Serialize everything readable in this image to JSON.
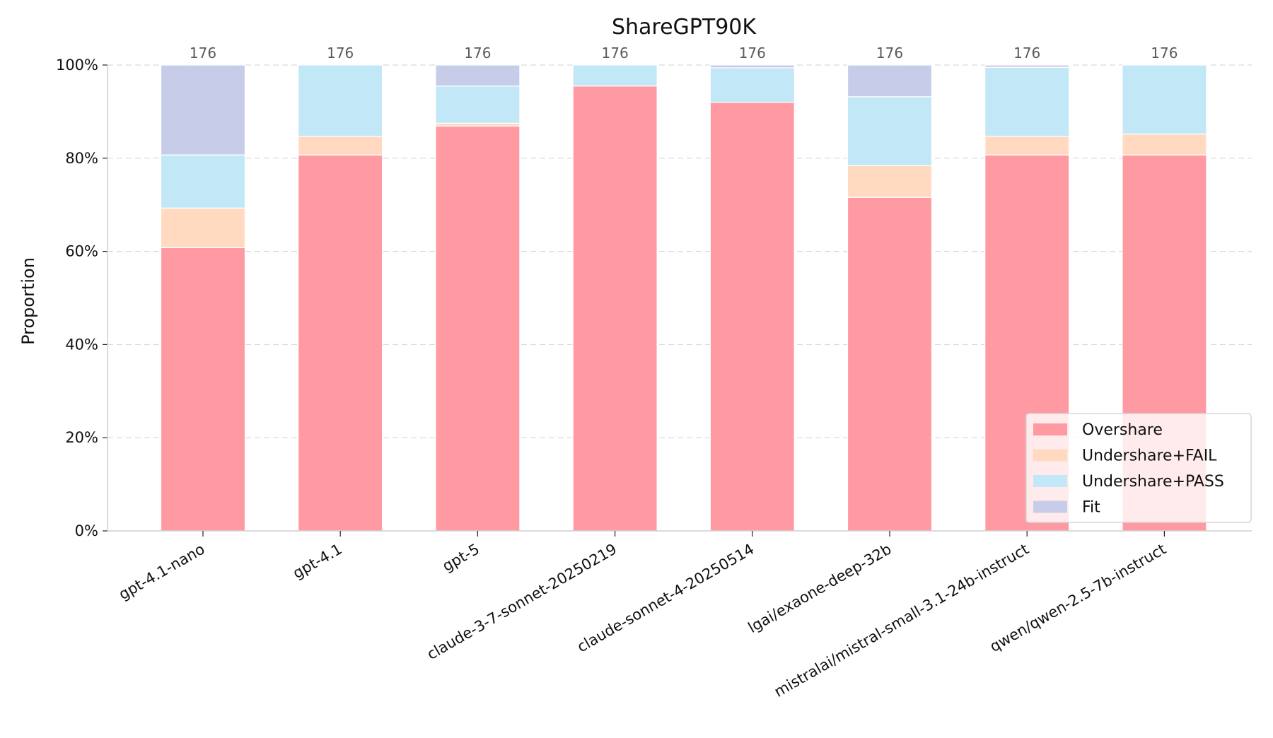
{
  "chart_data": {
    "type": "bar",
    "stacked": true,
    "title": "ShareGPT90K",
    "xlabel": "",
    "ylabel": "Proportion",
    "ylim": [
      0,
      1
    ],
    "yticks": [
      "0%",
      "20%",
      "40%",
      "60%",
      "80%",
      "100%"
    ],
    "grid": "horizontal dashed",
    "legend_position": "bottom-right",
    "categories": [
      "gpt-4.1-nano",
      "gpt-4.1",
      "gpt-5",
      "claude-3-7-sonnet-20250219",
      "claude-sonnet-4-20250514",
      "lgai/exaone-deep-32b",
      "mistralai/mistral-small-3.1-24b-instruct",
      "qwen/qwen-2.5-7b-instruct"
    ],
    "counts": [
      "176",
      "176",
      "176",
      "176",
      "176",
      "176",
      "176",
      "176"
    ],
    "series": [
      {
        "name": "Overshare",
        "color": "#ff9aa2",
        "values": [
          0.608,
          0.807,
          0.869,
          0.955,
          0.92,
          0.716,
          0.807,
          0.807
        ]
      },
      {
        "name": "Undershare+FAIL",
        "color": "#ffdac1",
        "values": [
          0.085,
          0.04,
          0.006,
          0.0,
          0.0,
          0.068,
          0.04,
          0.045
        ]
      },
      {
        "name": "Undershare+PASS",
        "color": "#c2e7f7",
        "values": [
          0.114,
          0.153,
          0.08,
          0.045,
          0.074,
          0.148,
          0.148,
          0.148
        ]
      },
      {
        "name": "Fit",
        "color": "#c7cde9",
        "values": [
          0.193,
          0.0,
          0.045,
          0.0,
          0.006,
          0.068,
          0.005,
          0.0
        ]
      }
    ]
  }
}
